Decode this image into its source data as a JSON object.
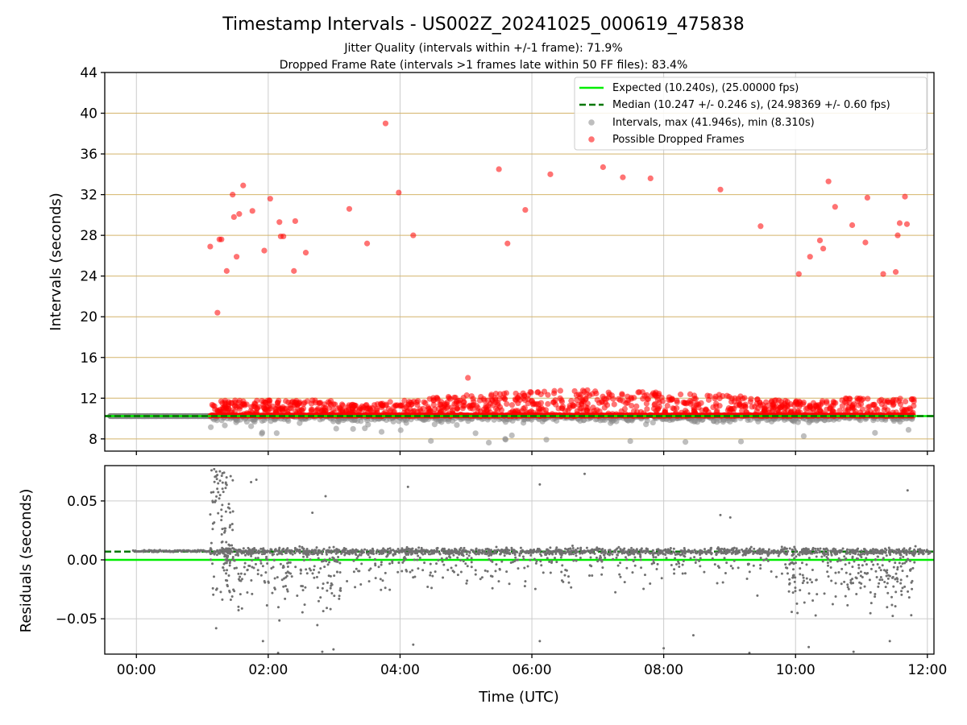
{
  "chart_data": {
    "type": "scatter",
    "title": "Timestamp Intervals - US002Z_20241025_000619_475838",
    "subtitle_lines": [
      "Jitter Quality (intervals within +/-1 frame): 71.9%",
      "Dropped Frame Rate (intervals >1 frames late within 50 FF files): 83.4%"
    ],
    "xlabel": "Time (UTC)",
    "x_unit": "hours since 00:00 UTC",
    "xlim": [
      -0.48,
      12.1
    ],
    "x_ticks": [
      0,
      2,
      4,
      6,
      8,
      10,
      12
    ],
    "x_tick_labels": [
      "00:00",
      "02:00",
      "04:00",
      "06:00",
      "08:00",
      "10:00",
      "12:00"
    ],
    "grid": true,
    "colors": {
      "expected": "#00ee00",
      "median": "#007700",
      "intervals": "#888888",
      "dropped": "#ff0000",
      "h_gridline": "#d4b46a",
      "v_gridline": "#cccccc",
      "residuals": "#707070"
    },
    "top_panel": {
      "ylabel": "Intervals (seconds)",
      "ylim": [
        6.8,
        44
      ],
      "y_ticks": [
        8,
        12,
        16,
        20,
        24,
        28,
        32,
        36,
        40,
        44
      ],
      "y_tick_labels": [
        "8",
        "12",
        "16",
        "20",
        "24",
        "28",
        "32",
        "36",
        "40",
        "44"
      ],
      "expected_value": 10.24,
      "median_value": 10.247,
      "legend_position": "upper-right",
      "legend": [
        {
          "label": "Expected (10.240s), (25.00000 fps)",
          "kind": "line"
        },
        {
          "label": "Median (10.247 +/- 0.246 s), (24.98369 +/- 0.60 fps)",
          "kind": "dashed"
        },
        {
          "label": "Intervals, max (41.946s), min (8.310s)",
          "kind": "marker-gray"
        },
        {
          "label": "Possible Dropped Frames",
          "kind": "marker-red"
        }
      ],
      "dropped_frame_points": [
        {
          "x": 1.12,
          "y": 26.9
        },
        {
          "x": 1.23,
          "y": 20.4
        },
        {
          "x": 1.26,
          "y": 27.6
        },
        {
          "x": 1.29,
          "y": 27.6
        },
        {
          "x": 1.37,
          "y": 24.5
        },
        {
          "x": 1.46,
          "y": 32.0
        },
        {
          "x": 1.48,
          "y": 29.8
        },
        {
          "x": 1.52,
          "y": 25.9
        },
        {
          "x": 1.56,
          "y": 30.1
        },
        {
          "x": 1.62,
          "y": 32.9
        },
        {
          "x": 1.76,
          "y": 30.4
        },
        {
          "x": 1.94,
          "y": 26.5
        },
        {
          "x": 2.03,
          "y": 31.6
        },
        {
          "x": 2.17,
          "y": 29.3
        },
        {
          "x": 2.19,
          "y": 27.9
        },
        {
          "x": 2.23,
          "y": 27.9
        },
        {
          "x": 2.39,
          "y": 24.5
        },
        {
          "x": 2.41,
          "y": 29.4
        },
        {
          "x": 2.57,
          "y": 26.3
        },
        {
          "x": 3.23,
          "y": 30.6
        },
        {
          "x": 3.5,
          "y": 27.2
        },
        {
          "x": 3.78,
          "y": 39.0
        },
        {
          "x": 3.98,
          "y": 32.2
        },
        {
          "x": 4.2,
          "y": 28.0
        },
        {
          "x": 5.5,
          "y": 34.5
        },
        {
          "x": 5.63,
          "y": 27.2
        },
        {
          "x": 5.9,
          "y": 30.5
        },
        {
          "x": 6.28,
          "y": 34.0
        },
        {
          "x": 7.08,
          "y": 34.7
        },
        {
          "x": 7.38,
          "y": 33.7
        },
        {
          "x": 7.8,
          "y": 33.6
        },
        {
          "x": 8.86,
          "y": 32.5
        },
        {
          "x": 9.47,
          "y": 28.9
        },
        {
          "x": 10.05,
          "y": 24.2
        },
        {
          "x": 10.22,
          "y": 25.9
        },
        {
          "x": 10.37,
          "y": 27.5
        },
        {
          "x": 10.42,
          "y": 26.7
        },
        {
          "x": 10.5,
          "y": 33.3
        },
        {
          "x": 10.6,
          "y": 30.8
        },
        {
          "x": 10.86,
          "y": 29.0
        },
        {
          "x": 11.06,
          "y": 27.3
        },
        {
          "x": 11.09,
          "y": 31.7
        },
        {
          "x": 11.33,
          "y": 24.2
        },
        {
          "x": 11.52,
          "y": 24.4
        },
        {
          "x": 11.55,
          "y": 28.0
        },
        {
          "x": 11.58,
          "y": 29.2
        },
        {
          "x": 11.66,
          "y": 31.8
        },
        {
          "x": 11.69,
          "y": 29.1
        },
        {
          "x": 5.03,
          "y": 14.0
        }
      ]
    },
    "bottom_panel": {
      "ylabel": "Residuals (seconds)",
      "ylim": [
        -0.08,
        0.08
      ],
      "y_ticks": [
        0.05,
        0.0,
        -0.05
      ],
      "y_tick_labels": [
        "0.05",
        "0.00",
        "−0.05"
      ],
      "expected_value": 0.0,
      "median_value": 0.007,
      "outlier_points": [
        {
          "x": 1.14,
          "y": 0.076
        },
        {
          "x": 1.18,
          "y": 0.077
        },
        {
          "x": 1.21,
          "y": 0.071
        },
        {
          "x": 1.24,
          "y": 0.065
        },
        {
          "x": 1.16,
          "y": 0.049
        },
        {
          "x": 1.27,
          "y": 0.055
        },
        {
          "x": 1.33,
          "y": 0.074
        },
        {
          "x": 1.43,
          "y": 0.071
        },
        {
          "x": 1.74,
          "y": 0.066
        },
        {
          "x": 1.82,
          "y": 0.068
        },
        {
          "x": 2.67,
          "y": 0.04
        },
        {
          "x": 2.87,
          "y": 0.054
        },
        {
          "x": 4.12,
          "y": 0.062
        },
        {
          "x": 6.12,
          "y": 0.064
        },
        {
          "x": 6.8,
          "y": 0.073
        },
        {
          "x": 8.86,
          "y": 0.038
        },
        {
          "x": 9.01,
          "y": 0.036
        },
        {
          "x": 11.7,
          "y": 0.059
        },
        {
          "x": 1.21,
          "y": -0.058
        },
        {
          "x": 1.92,
          "y": -0.069
        },
        {
          "x": 2.15,
          "y": -0.079
        },
        {
          "x": 2.82,
          "y": -0.078
        },
        {
          "x": 2.99,
          "y": -0.076
        },
        {
          "x": 4.2,
          "y": -0.072
        },
        {
          "x": 6.12,
          "y": -0.069
        },
        {
          "x": 8.0,
          "y": -0.075
        },
        {
          "x": 8.45,
          "y": -0.064
        },
        {
          "x": 9.3,
          "y": -0.079
        },
        {
          "x": 10.2,
          "y": -0.074
        },
        {
          "x": 10.88,
          "y": -0.078
        },
        {
          "x": 11.43,
          "y": -0.069
        }
      ]
    }
  }
}
